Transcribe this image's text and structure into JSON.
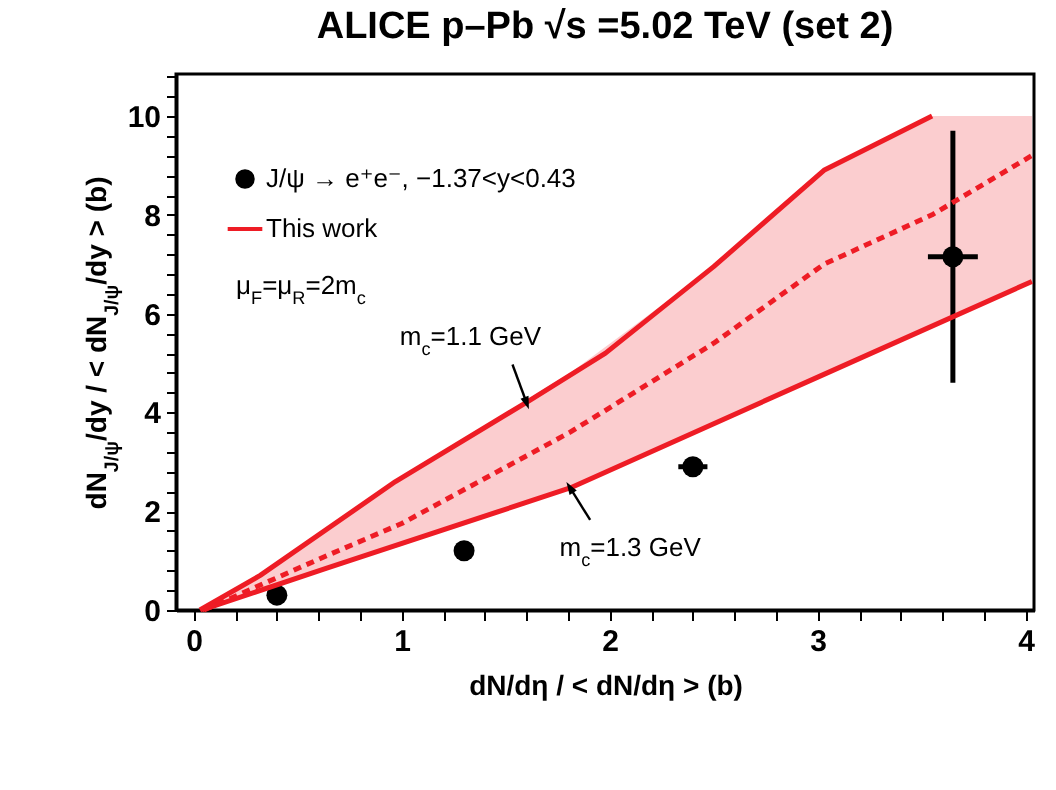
{
  "chart_data": {
    "type": "line",
    "title": "ALICE p–Pb √s =5.02 TeV (set 2)",
    "xlabel": "dN/dη / < dN/dη > (b)",
    "ylabel": "dN$_{J/ψ}$/dy / < dN$_{J/ψ}$/dy > (b)",
    "xlim": [
      -0.085,
      4.04
    ],
    "ylim": [
      0,
      10.85
    ],
    "xticks": [
      0,
      {
        "value": 0.2,
        "label": null
      },
      {
        "value": 0.4,
        "label": null
      },
      {
        "value": 0.6,
        "label": null
      },
      {
        "value": 0.8,
        "label": null
      },
      1,
      {
        "value": 1.2,
        "label": null
      },
      {
        "value": 1.4,
        "label": null
      },
      {
        "value": 1.6,
        "label": null
      },
      {
        "value": 1.8,
        "label": null
      },
      2,
      {
        "value": 2.2,
        "label": null
      },
      {
        "value": 2.4,
        "label": null
      },
      {
        "value": 2.6,
        "label": null
      },
      {
        "value": 2.8,
        "label": null
      },
      3,
      {
        "value": 3.2,
        "label": null
      },
      {
        "value": 3.4,
        "label": null
      },
      {
        "value": 3.6,
        "label": null
      },
      {
        "value": 3.8,
        "label": null
      },
      4
    ],
    "yticks": [
      0,
      {
        "value": 0.4,
        "label": null
      },
      {
        "value": 0.8,
        "label": null
      },
      {
        "value": 1.2,
        "label": null
      },
      {
        "value": 1.6,
        "label": null
      },
      2,
      {
        "value": 2.4,
        "label": null
      },
      {
        "value": 2.8,
        "label": null
      },
      {
        "value": 3.2,
        "label": null
      },
      {
        "value": 3.6,
        "label": null
      },
      4,
      {
        "value": 4.4,
        "label": null
      },
      {
        "value": 4.8,
        "label": null
      },
      {
        "value": 5.2,
        "label": null
      },
      {
        "value": 5.6,
        "label": null
      },
      6,
      {
        "value": 6.4,
        "label": null
      },
      {
        "value": 6.8,
        "label": null
      },
      {
        "value": 7.2,
        "label": null
      },
      {
        "value": 7.6,
        "label": null
      },
      8,
      {
        "value": 8.4,
        "label": null
      },
      {
        "value": 8.8,
        "label": null
      },
      {
        "value": 9.2,
        "label": null
      },
      {
        "value": 9.6,
        "label": null
      },
      10,
      {
        "value": 10.4,
        "label": null
      },
      {
        "value": 10.8,
        "label": null
      }
    ],
    "grid": false,
    "legend": "top left",
    "series": [
      {
        "name": "J/ψ → e⁺e⁻, −1.37<y<0.43",
        "type": "scatter",
        "marker": "circle",
        "color": "#000000",
        "x": [
          0.4,
          1.3,
          2.4,
          3.65
        ],
        "values": [
          0.3,
          1.2,
          2.9,
          7.15
        ],
        "errors": [
          null,
          null,
          0.1,
          [
            4.6,
            9.7
          ]
        ],
        "xerrors": [
          null,
          null,
          0.07,
          0.12
        ]
      },
      {
        "name": "This work",
        "line_style": "solid",
        "color": "#ee1c25",
        "x": [
          0.03,
          0.32,
          0.97,
          1.61,
          1.98,
          2.5,
          3.03,
          3.55
        ],
        "values": [
          0,
          0.7,
          2.6,
          4.23,
          5.2,
          6.95,
          8.9,
          10
        ]
      },
      {
        "line_style": "solid",
        "color": "#ee1c25",
        "x": [
          0.04,
          0.64,
          1.81,
          3.03,
          4.03
        ],
        "values": [
          0,
          0.85,
          2.47,
          4.77,
          6.65
        ]
      },
      {
        "line_style": "dashed",
        "color": "#ee1c25",
        "x": [
          0.05,
          0.64,
          1.0,
          1.81,
          2.5,
          3.03,
          3.55,
          4.03
        ],
        "values": [
          0,
          1.1,
          1.75,
          3.6,
          5.4,
          7.0,
          8.0,
          9.2
        ],
        "lower": [
          0,
          0.85,
          1.3,
          2.47,
          3.75,
          4.77,
          5.75,
          6.65
        ],
        "upper": [
          0,
          1.6,
          2.7,
          4.8,
          6.95,
          8.9,
          10,
          10
        ]
      }
    ],
    "annotations": [
      "μ$_{F}$=μ$_{R}$=2m$_{c}$",
      {
        "text": "m$_{c}$=1.1 GeV",
        "x": 1.6,
        "y": 4.2
      },
      {
        "text": "m$_{c}$=1.3 GeV",
        "x": 1.81,
        "y": 2.47
      }
    ]
  }
}
